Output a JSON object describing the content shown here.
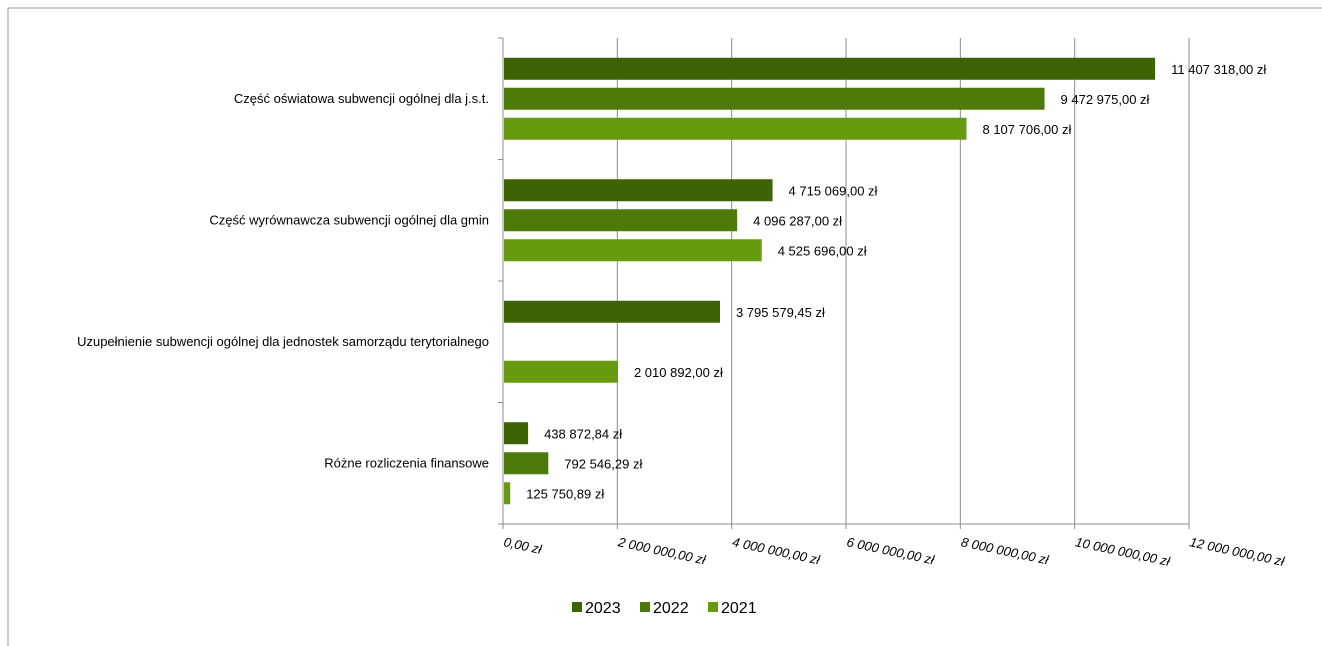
{
  "chart_data": {
    "type": "bar",
    "orientation": "horizontal",
    "categories": [
      "Część oświatowa subwencji ogólnej dla j.s.t.",
      "Część wyrównawcza subwencji ogólnej dla gmin",
      "Uzupełnienie subwencji ogólnej dla jednostek samorządu terytorialnego",
      "Różne rozliczenia finansowe"
    ],
    "series": [
      {
        "name": "2023",
        "color": "#3d6305",
        "values": [
          11407318.0,
          4715069.0,
          3795579.45,
          438872.84
        ],
        "labels": [
          "11 407 318,00 zł",
          "4 715 069,00 zł",
          "3 795 579,45 zł",
          "438 872,84 zł"
        ]
      },
      {
        "name": "2022",
        "color": "#4e7a0a",
        "values": [
          9472975.0,
          4096287.0,
          null,
          792546.29
        ],
        "labels": [
          "9 472 975,00 zł",
          "4 096 287,00 zł",
          null,
          "792 546,29 zł"
        ]
      },
      {
        "name": "2021",
        "color": "#679a0e",
        "values": [
          8107706.0,
          4525696.0,
          2010892.0,
          125750.89
        ],
        "labels": [
          "8 107 706,00 zł",
          "4 525 696,00 zł",
          "2 010 892,00 zł",
          "125 750,89 zł"
        ]
      }
    ],
    "xlim": [
      0,
      12000000
    ],
    "x_ticks": [
      0,
      2000000,
      4000000,
      6000000,
      8000000,
      10000000,
      12000000
    ],
    "x_tick_labels": [
      "0,00 zł",
      "2 000 000,00 zł",
      "4 000 000,00 zł",
      "6 000 000,00 zł",
      "8 000 000,00 zł",
      "10 000 000,00 zł",
      "12 000 000,00 zł"
    ],
    "grid": true,
    "legend_position": "bottom",
    "title": "",
    "xlabel": "",
    "ylabel": ""
  }
}
